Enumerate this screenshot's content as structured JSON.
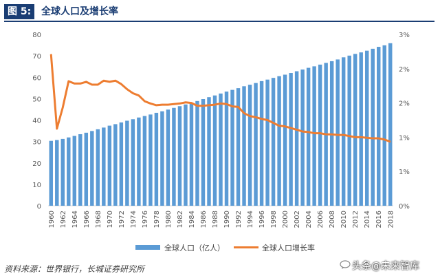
{
  "figure": {
    "label": "图 5:",
    "title": "全球人口及增长率",
    "source": "资料来源：世界银行，长城证券研究所",
    "watermark": "头条@未来智库"
  },
  "chart_data": {
    "type": "bar+line",
    "title": "全球人口及增长率",
    "categories": [
      "1960",
      "1961",
      "1962",
      "1963",
      "1964",
      "1965",
      "1966",
      "1967",
      "1968",
      "1969",
      "1970",
      "1971",
      "1972",
      "1973",
      "1974",
      "1975",
      "1976",
      "1977",
      "1978",
      "1979",
      "1980",
      "1981",
      "1982",
      "1983",
      "1984",
      "1985",
      "1986",
      "1987",
      "1988",
      "1989",
      "1990",
      "1991",
      "1992",
      "1993",
      "1994",
      "1995",
      "1996",
      "1997",
      "1998",
      "1999",
      "2000",
      "2001",
      "2002",
      "2003",
      "2004",
      "2005",
      "2006",
      "2007",
      "2008",
      "2009",
      "2010",
      "2011",
      "2012",
      "2013",
      "2014",
      "2015",
      "2016",
      "2017",
      "2018"
    ],
    "x_tick_labels": [
      "1960",
      "1962",
      "1964",
      "1966",
      "1968",
      "1970",
      "1972",
      "1974",
      "1976",
      "1978",
      "1980",
      "1982",
      "1984",
      "1986",
      "1988",
      "1990",
      "1992",
      "1994",
      "1996",
      "1998",
      "2000",
      "2002",
      "2004",
      "2006",
      "2008",
      "2010",
      "2012",
      "2014",
      "2016",
      "2018"
    ],
    "series": [
      {
        "name": "全球人口（亿人）",
        "type": "bar",
        "axis": "left",
        "color": "#5b9bd5",
        "values": [
          30.3,
          30.7,
          31.2,
          31.9,
          32.6,
          33.4,
          34.1,
          34.9,
          35.7,
          36.5,
          37.4,
          38.1,
          38.9,
          39.7,
          40.4,
          41.2,
          41.9,
          42.6,
          43.4,
          44.1,
          44.9,
          45.7,
          46.5,
          47.3,
          48.1,
          48.9,
          49.8,
          50.7,
          51.5,
          52.4,
          53.3,
          54.1,
          54.9,
          55.8,
          56.5,
          57.3,
          58.2,
          58.9,
          59.7,
          60.5,
          61.2,
          62.0,
          62.8,
          63.6,
          64.4,
          65.1,
          65.9,
          66.7,
          67.5,
          68.3,
          69.3,
          70.1,
          70.9,
          71.6,
          72.4,
          73.3,
          74.2,
          74.9,
          75.9
        ]
      },
      {
        "name": "全球人口增长率",
        "type": "line",
        "axis": "right",
        "color": "#ed7d31",
        "values": [
          2.65,
          1.35,
          1.72,
          2.18,
          2.14,
          2.14,
          2.17,
          2.12,
          2.12,
          2.19,
          2.17,
          2.19,
          2.13,
          2.04,
          1.97,
          1.93,
          1.83,
          1.79,
          1.76,
          1.77,
          1.77,
          1.78,
          1.79,
          1.81,
          1.8,
          1.75,
          1.75,
          1.76,
          1.77,
          1.79,
          1.78,
          1.74,
          1.73,
          1.62,
          1.57,
          1.55,
          1.52,
          1.5,
          1.45,
          1.4,
          1.39,
          1.36,
          1.33,
          1.3,
          1.29,
          1.27,
          1.27,
          1.25,
          1.25,
          1.24,
          1.24,
          1.22,
          1.2,
          1.2,
          1.19,
          1.18,
          1.18,
          1.16,
          1.12
        ]
      }
    ],
    "y_left": {
      "min": 0,
      "max": 80,
      "ticks": [
        "0",
        "10",
        "20",
        "30",
        "40",
        "50",
        "60",
        "70",
        "80"
      ]
    },
    "y_right": {
      "min": 0,
      "max": 3,
      "ticks": [
        "0%",
        "1%",
        "1%",
        "2%",
        "2%",
        "3%"
      ]
    },
    "legend_position": "bottom"
  }
}
